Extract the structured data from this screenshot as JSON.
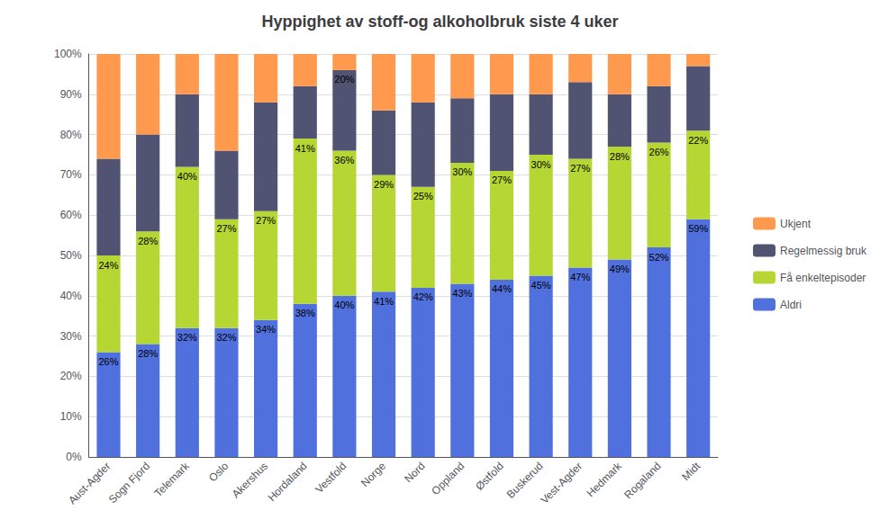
{
  "chart_data": {
    "type": "bar",
    "title": "Hyppighet av stoff-og alkoholbruk siste 4 uker",
    "categories": [
      "Aust-Agder",
      "Sogn Fjord",
      "Telemark",
      "Oslo",
      "Akershus",
      "Hordaland",
      "Vestfold",
      "Norge",
      "Nord",
      "Oppland",
      "Østfold",
      "Buskerud",
      "Vest-Agder",
      "Hedmark",
      "Rogaland",
      "Midt"
    ],
    "stacked": true,
    "series": [
      {
        "name": "Aldri",
        "values": [
          26,
          28,
          32,
          32,
          34,
          38,
          40,
          41,
          42,
          43,
          44,
          45,
          47,
          49,
          52,
          59
        ],
        "value_labels": [
          "26%",
          "28%",
          "32%",
          "32%",
          "34%",
          "38%",
          "40%",
          "41%",
          "42%",
          "43%",
          "44%",
          "45%",
          "47%",
          "49%",
          "52%",
          "59%"
        ]
      },
      {
        "name": "Få enkeltepisoder",
        "values": [
          24,
          28,
          40,
          27,
          27,
          41,
          36,
          29,
          25,
          30,
          27,
          30,
          27,
          28,
          26,
          22
        ],
        "value_labels": [
          "24%",
          "28%",
          "40%",
          "27%",
          "27%",
          "41%",
          "36%",
          "29%",
          "25%",
          "30%",
          "27%",
          "30%",
          "27%",
          "28%",
          "26%",
          "22%"
        ]
      },
      {
        "name": "Regelmessig bruk",
        "values": [
          24,
          24,
          18,
          17,
          27,
          13,
          20,
          16,
          21,
          16,
          19,
          15,
          19,
          13,
          14,
          16
        ],
        "value_labels": [
          null,
          null,
          null,
          null,
          null,
          null,
          "20%",
          null,
          null,
          null,
          null,
          null,
          null,
          null,
          null,
          null
        ]
      },
      {
        "name": "Ukjent",
        "values": [
          26,
          20,
          10,
          24,
          12,
          8,
          4,
          14,
          12,
          11,
          10,
          10,
          7,
          10,
          8,
          3
        ]
      }
    ],
    "ylim": [
      0,
      100
    ],
    "yticks": [
      {
        "value": 0,
        "label": "0%"
      },
      {
        "value": 10,
        "label": "10%"
      },
      {
        "value": 20,
        "label": "20%"
      },
      {
        "value": 30,
        "label": "30%"
      },
      {
        "value": 40,
        "label": "40%"
      },
      {
        "value": 50,
        "label": "50%"
      },
      {
        "value": 60,
        "label": "60%"
      },
      {
        "value": 70,
        "label": "70%"
      },
      {
        "value": 80,
        "label": "80%"
      },
      {
        "value": 90,
        "label": "90%"
      },
      {
        "value": 100,
        "label": "100%"
      }
    ],
    "grid": true,
    "legend": "right"
  }
}
